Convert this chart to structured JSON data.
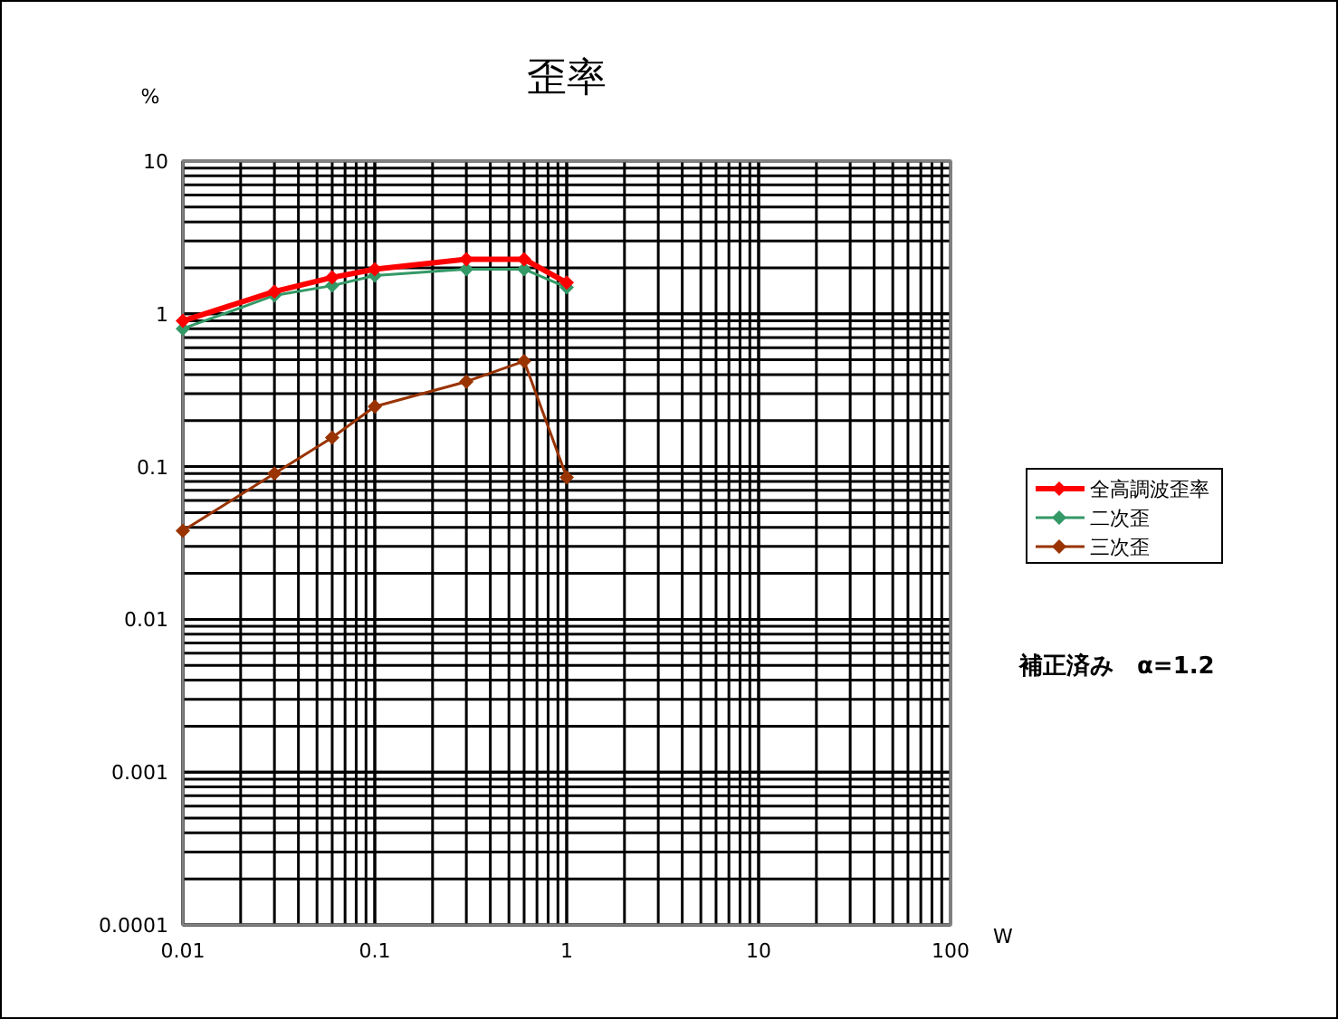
{
  "chart_data": {
    "type": "line",
    "title": "歪率",
    "ylabel": "%",
    "xlabel": "W",
    "log": "xy",
    "grid": true,
    "legend": "right",
    "marker": "diamond",
    "line_style": "solid",
    "xlim": [
      0.01,
      100
    ],
    "ylim": [
      0.0001,
      10
    ],
    "xticks": [
      0.01,
      0.1,
      1,
      10,
      100
    ],
    "yticks": [
      0.0001,
      0.001,
      0.01,
      0.1,
      1,
      10
    ],
    "x": [
      0.01,
      0.03,
      0.06,
      0.1,
      0.3,
      0.6,
      1
    ],
    "series": [
      {
        "name": "全高調波歪率",
        "color": "#ff0000",
        "values": [
          0.9,
          1.4,
          1.73,
          1.96,
          2.28,
          2.28,
          1.6
        ]
      },
      {
        "name": "二次歪",
        "color": "#339966",
        "values": [
          0.8,
          1.32,
          1.53,
          1.78,
          1.96,
          1.96,
          1.49
        ]
      },
      {
        "name": "三次歪",
        "color": "#993300",
        "values": [
          0.038,
          0.09,
          0.155,
          0.247,
          0.36,
          0.49,
          0.085
        ]
      }
    ],
    "annotations": [
      "補正済み　α=1.2"
    ]
  }
}
